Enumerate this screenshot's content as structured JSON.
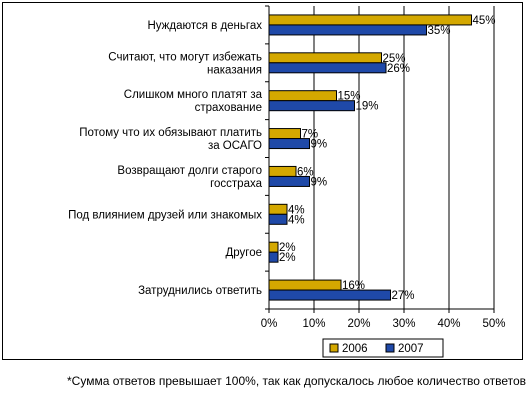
{
  "chart_data": {
    "type": "bar",
    "orientation": "horizontal",
    "categories": [
      [
        "Нуждаются в деньгах"
      ],
      [
        "Считают, что могут избежать",
        "наказания"
      ],
      [
        "Слишком много платят за",
        "страхование"
      ],
      [
        "Потому что их обязывают платить",
        "за ОСАГО"
      ],
      [
        "Возвращают долги старого",
        "госстраха"
      ],
      [
        "Под влиянием друзей или знакомых"
      ],
      [
        "Другое"
      ],
      [
        "Затруднились ответить"
      ]
    ],
    "series": [
      {
        "name": "2006",
        "values": [
          45,
          25,
          15,
          7,
          6,
          4,
          2,
          16
        ],
        "labels": [
          "45%",
          "25%",
          "15%",
          "7%",
          "6%",
          "4%",
          "2%",
          "16%"
        ],
        "color": "#d4a800"
      },
      {
        "name": "2007",
        "values": [
          35,
          26,
          19,
          9,
          9,
          4,
          2,
          27
        ],
        "labels": [
          "35%",
          "26%",
          "19%",
          "9%",
          "9%",
          "4%",
          "2%",
          "27%"
        ],
        "color": "#1f49a8"
      }
    ],
    "xlim": [
      0,
      50
    ],
    "xticks": [
      "0%",
      "10%",
      "20%",
      "30%",
      "40%",
      "50%"
    ],
    "grid": true,
    "legend_position": "bottom-right"
  },
  "footnote": "*Сумма ответов превышает 100%, так как допускалось любое количество ответов"
}
